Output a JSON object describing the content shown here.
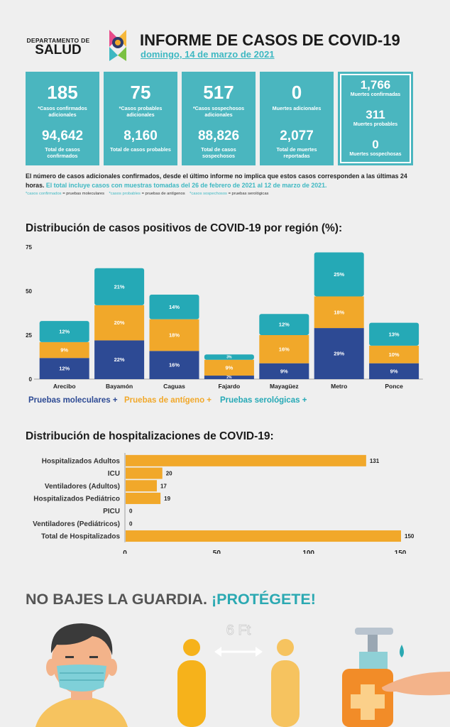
{
  "header": {
    "dept_line1": "DEPARTAMENTO DE",
    "dept_line2": "SALUD",
    "title": "INFORME DE CASOS DE COVID-19",
    "date": "domingo, 14 de marzo de 2021"
  },
  "boxes": [
    {
      "big": "185",
      "big_label": "*Casos confirmados adicionales",
      "total": "94,642",
      "total_label": "Total de casos confirmados"
    },
    {
      "big": "75",
      "big_label": "*Casos probables adicionales",
      "total": "8,160",
      "total_label": "Total de casos probables"
    },
    {
      "big": "517",
      "big_label": "*Casos sospechosos adicionales",
      "total": "88,826",
      "total_label": "Total de casos sospechosos"
    },
    {
      "big": "0",
      "big_label": "Muertes adicionales",
      "total": "2,077",
      "total_label": "Total de muertes reportadas"
    }
  ],
  "deaths_box": [
    {
      "value": "1,766",
      "label": "Muertes confirmadas"
    },
    {
      "value": "311",
      "label": "Muertes probables"
    },
    {
      "value": "0",
      "label": "Muertes sospechosas"
    }
  ],
  "notes": {
    "line1": "El número de casos adicionales confirmados, desde el último informe no implica que estos casos corresponden a las últimas 24 horas.",
    "line2": "El total incluye casos con muestras tomadas del 26 de febrero de 2021 al 12 de marzo de 2021.",
    "legend_confirmed": "*casos confirmados",
    "legend_confirmed_def": " = pruebas moleculares",
    "legend_probable": "*casos probables",
    "legend_probable_def": " = pruebas de antígenos",
    "legend_suspect": "*casos sospechosos",
    "legend_suspect_def": " = pruebas serológicas"
  },
  "chart_data": [
    {
      "type": "bar",
      "stacked": true,
      "title": "Distribución de casos positivos de COVID-19 por región (%):",
      "categories": [
        "Arecibo",
        "Bayamón",
        "Caguas",
        "Fajardo",
        "Mayagüez",
        "Metro",
        "Ponce"
      ],
      "ylim": [
        0,
        75
      ],
      "yticks": [
        0,
        25,
        50,
        75
      ],
      "series": [
        {
          "name": "Pruebas moleculares +",
          "color": "#2d4a94",
          "values": [
            12,
            22,
            16,
            2,
            9,
            29,
            9
          ],
          "labels": [
            "12%",
            "22%",
            "16%",
            "2%",
            "9%",
            "29%",
            "9%"
          ]
        },
        {
          "name": "Pruebas de antígeno +",
          "color": "#f1a82a",
          "values": [
            9,
            20,
            18,
            9,
            16,
            18,
            10
          ],
          "labels": [
            "9%",
            "20%",
            "18%",
            "9%",
            "16%",
            "18%",
            "10%"
          ]
        },
        {
          "name": "Pruebas serológicas +",
          "color": "#25a9b6",
          "values": [
            12,
            21,
            14,
            3,
            12,
            25,
            13
          ],
          "labels": [
            "12%",
            "21%",
            "14%",
            "3%",
            "12%",
            "25%",
            "13%"
          ]
        }
      ]
    },
    {
      "type": "bar",
      "orientation": "horizontal",
      "title": "Distribución de hospitalizaciones de COVID-19:",
      "categories": [
        "Hospitalizados Adultos",
        "ICU",
        "Ventiladores (Adultos)",
        "Hospitalizados Pediátrico",
        "PICU",
        "Ventiladores (Pediátricos)",
        "Total de Hospitalizados"
      ],
      "values": [
        131,
        20,
        17,
        19,
        0,
        0,
        150
      ],
      "color": "#f1a82a",
      "xlim": [
        0,
        150
      ],
      "xticks": [
        0,
        50,
        100,
        150
      ]
    }
  ],
  "slogan": {
    "part1": "NO BAJES LA GUARDIA. ",
    "part2": "¡PROTÉGETE!"
  },
  "distance_label": "6 Ft"
}
